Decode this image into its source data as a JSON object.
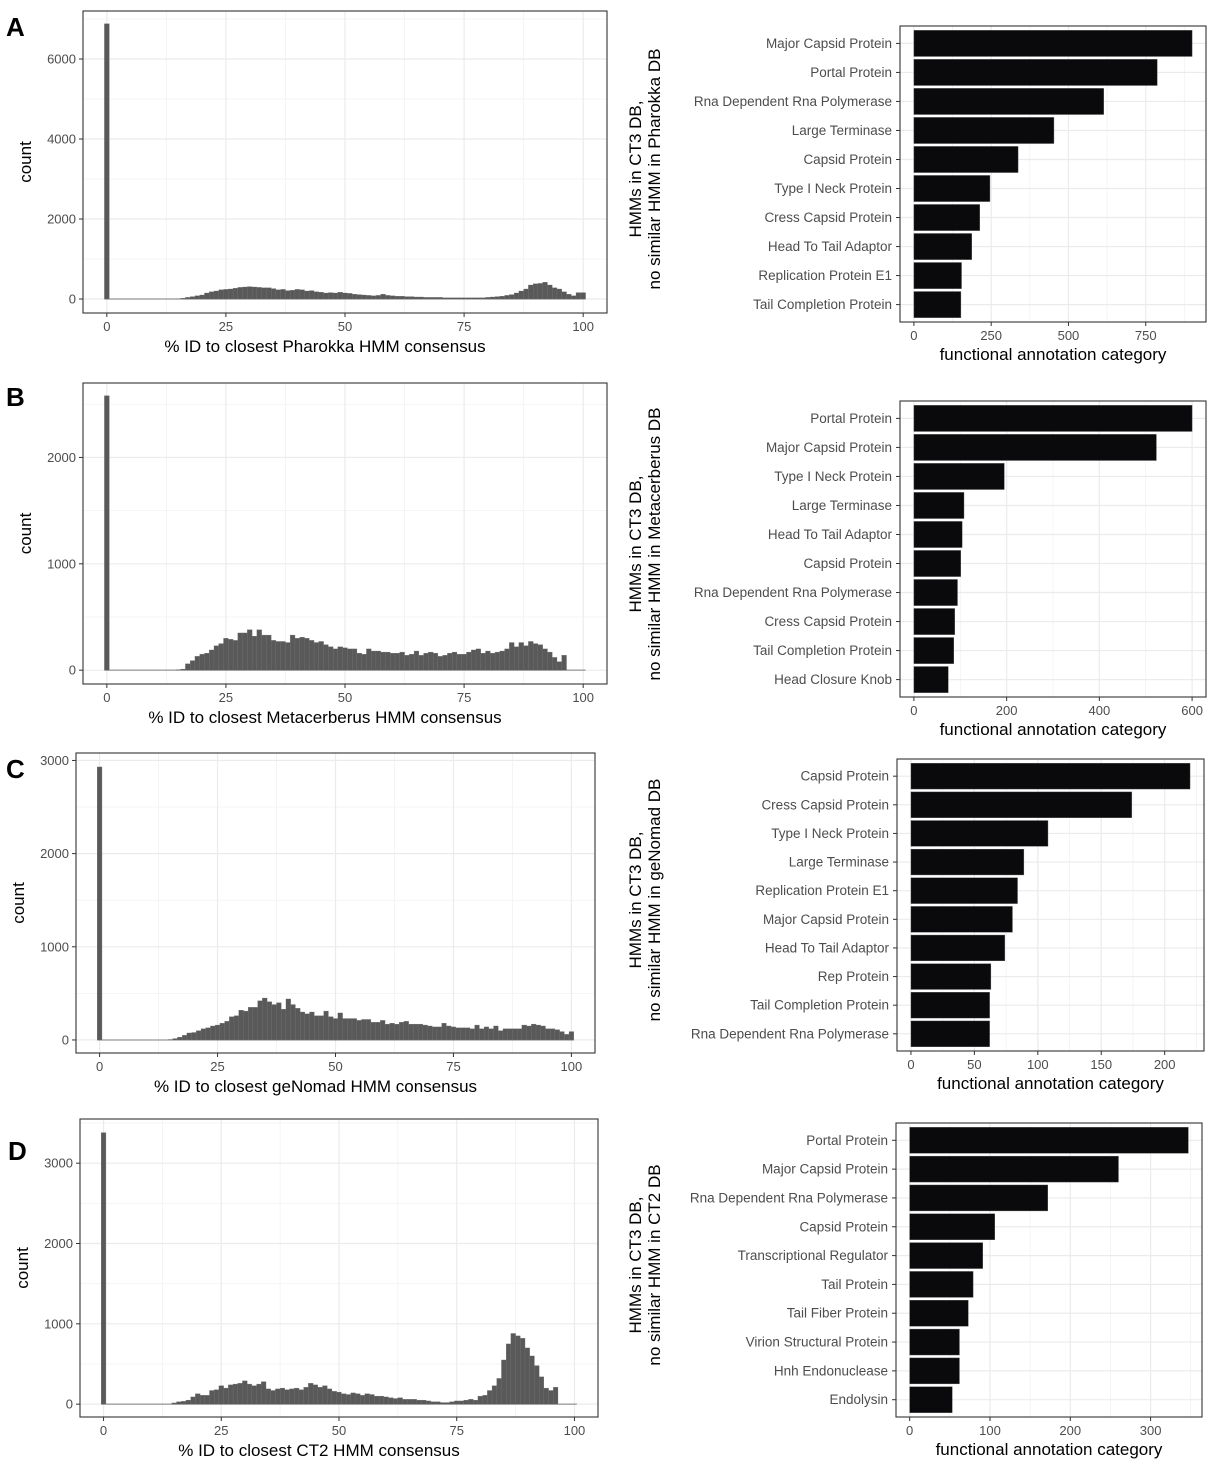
{
  "chart_data": [
    {
      "panel": "A",
      "type": "bar",
      "subtype": "histogram",
      "xlabel": "% ID to closest Pharokka HMM consensus",
      "ylabel": "count",
      "xlim": [
        -5,
        105
      ],
      "ylim": [
        -350,
        7200
      ],
      "xticks": [
        0,
        25,
        50,
        75,
        100
      ],
      "yticks": [
        0,
        2000,
        4000,
        6000
      ],
      "grid": true,
      "bin_width": 1,
      "zero_bin": 6880,
      "bins_start": 15,
      "values": [
        5,
        20,
        40,
        60,
        80,
        100,
        150,
        180,
        200,
        230,
        240,
        250,
        270,
        290,
        300,
        310,
        300,
        290,
        280,
        280,
        260,
        230,
        240,
        210,
        220,
        240,
        230,
        200,
        210,
        180,
        170,
        150,
        160,
        150,
        170,
        150,
        140,
        120,
        110,
        100,
        90,
        80,
        90,
        120,
        90,
        80,
        70,
        70,
        60,
        60,
        50,
        50,
        40,
        40,
        40,
        40,
        30,
        30,
        30,
        30,
        30,
        30,
        30,
        30,
        30,
        40,
        50,
        60,
        70,
        90,
        110,
        150,
        200,
        250,
        350,
        380,
        390,
        420,
        350,
        280,
        250,
        180,
        120,
        80,
        160,
        160
      ],
      "fill": "#595959"
    },
    {
      "panel": "A",
      "type": "bar",
      "orientation": "horizontal",
      "ylabel_lines": [
        "HMMs in CT3 DB,",
        "no similar HMM in Pharokka DB"
      ],
      "xlabel": "functional annotation category",
      "xlim": [
        -45,
        945
      ],
      "xticks": [
        0,
        250,
        500,
        750
      ],
      "grid": true,
      "categories": [
        "Major Capsid Protein",
        "Portal Protein",
        "Rna Dependent Rna Polymerase",
        "Large Terminase",
        "Capsid Protein",
        "Type I Neck Protein",
        "Cress Capsid Protein",
        "Head To Tail Adaptor",
        "Replication Protein E1",
        "Tail Completion Protein"
      ],
      "values": [
        900,
        787,
        614,
        453,
        337,
        246,
        213,
        187,
        154,
        152
      ],
      "fill": "#0a0a0c"
    },
    {
      "panel": "B",
      "type": "bar",
      "subtype": "histogram",
      "xlabel": "% ID to closest Metacerberus HMM consensus",
      "ylabel": "count",
      "xlim": [
        -5,
        105
      ],
      "ylim": [
        -130,
        2700
      ],
      "xticks": [
        0,
        25,
        50,
        75,
        100
      ],
      "yticks": [
        0,
        1000,
        2000
      ],
      "grid": true,
      "bin_width": 1,
      "zero_bin": 2580,
      "bins_start": 15,
      "values": [
        5,
        10,
        60,
        90,
        130,
        150,
        160,
        190,
        230,
        250,
        300,
        290,
        280,
        350,
        350,
        380,
        320,
        380,
        330,
        330,
        280,
        270,
        270,
        260,
        330,
        300,
        310,
        300,
        280,
        260,
        270,
        240,
        220,
        200,
        220,
        210,
        200,
        200,
        160,
        150,
        200,
        180,
        180,
        170,
        170,
        160,
        160,
        170,
        140,
        150,
        180,
        140,
        160,
        170,
        160,
        130,
        140,
        160,
        170,
        150,
        150,
        170,
        190,
        200,
        160,
        180,
        160,
        170,
        180,
        200,
        260,
        220,
        260,
        230,
        270,
        250,
        240,
        200,
        170,
        120,
        80,
        140
      ],
      "fill": "#595959"
    },
    {
      "panel": "B",
      "type": "bar",
      "orientation": "horizontal",
      "ylabel_lines": [
        "HMMs in CT3 DB,",
        "no similar HMM in Metacerberus DB"
      ],
      "xlabel": "functional annotation category",
      "xlim": [
        -30,
        630
      ],
      "xticks": [
        0,
        200,
        400,
        600
      ],
      "grid": true,
      "categories": [
        "Portal Protein",
        "Major Capsid Protein",
        "Type I Neck Protein",
        "Large Terminase",
        "Head To Tail Adaptor",
        "Capsid Protein",
        "Rna Dependent Rna Polymerase",
        "Cress Capsid Protein",
        "Tail Completion Protein",
        "Head Closure Knob"
      ],
      "values": [
        600,
        523,
        195,
        108,
        104,
        101,
        94,
        88,
        86,
        74
      ],
      "fill": "#0a0a0c"
    },
    {
      "panel": "C",
      "type": "bar",
      "subtype": "histogram",
      "xlabel": "% ID to closest geNomad HMM consensus",
      "ylabel": "count",
      "xlim": [
        -5,
        105
      ],
      "ylim": [
        -140,
        3080
      ],
      "xticks": [
        0,
        25,
        50,
        75,
        100
      ],
      "yticks": [
        0,
        1000,
        2000,
        3000
      ],
      "grid": true,
      "bin_width": 1,
      "zero_bin": 2930,
      "bins_start": 15,
      "values": [
        5,
        15,
        30,
        50,
        75,
        80,
        100,
        120,
        130,
        150,
        160,
        180,
        200,
        250,
        260,
        320,
        310,
        350,
        350,
        420,
        450,
        410,
        380,
        400,
        330,
        440,
        380,
        340,
        300,
        280,
        300,
        260,
        260,
        310,
        250,
        230,
        290,
        230,
        230,
        230,
        210,
        220,
        220,
        190,
        190,
        210,
        170,
        180,
        170,
        190,
        200,
        170,
        170,
        170,
        160,
        150,
        140,
        140,
        180,
        150,
        140,
        130,
        130,
        130,
        120,
        160,
        120,
        140,
        120,
        150,
        100,
        120,
        120,
        120,
        120,
        160,
        150,
        170,
        160,
        150,
        120,
        120,
        110,
        90,
        60,
        90
      ],
      "fill": "#595959"
    },
    {
      "panel": "C",
      "type": "bar",
      "orientation": "horizontal",
      "ylabel_lines": [
        "HMMs in CT3 DB,",
        "no similar HMM in geNomad DB"
      ],
      "xlabel": "functional annotation category",
      "xlim": [
        -11,
        231
      ],
      "xticks": [
        0,
        50,
        100,
        150,
        200
      ],
      "grid": true,
      "categories": [
        "Capsid Protein",
        "Cress Capsid Protein",
        "Type I Neck Protein",
        "Large Terminase",
        "Replication Protein E1",
        "Major Capsid Protein",
        "Head To Tail Adaptor",
        "Rep Protein",
        "Tail Completion Protein",
        "Rna Dependent Rna Polymerase"
      ],
      "values": [
        220,
        174,
        108,
        89,
        84,
        80,
        74,
        63,
        62,
        62
      ],
      "fill": "#0a0a0c"
    },
    {
      "panel": "D",
      "type": "bar",
      "subtype": "histogram",
      "xlabel": "% ID to closest CT2 HMM consensus",
      "ylabel": "count",
      "xlim": [
        -5,
        105
      ],
      "ylim": [
        -160,
        3550
      ],
      "xticks": [
        0,
        25,
        50,
        75,
        100
      ],
      "yticks": [
        0,
        1000,
        2000,
        3000
      ],
      "grid": true,
      "bin_width": 1,
      "zero_bin": 3380,
      "bins_start": 15,
      "values": [
        15,
        30,
        35,
        50,
        90,
        130,
        110,
        110,
        170,
        180,
        230,
        200,
        240,
        250,
        260,
        290,
        250,
        230,
        250,
        280,
        190,
        170,
        190,
        200,
        180,
        190,
        200,
        180,
        210,
        260,
        240,
        210,
        230,
        190,
        160,
        150,
        130,
        120,
        140,
        130,
        110,
        130,
        120,
        100,
        100,
        90,
        80,
        70,
        80,
        60,
        60,
        60,
        50,
        50,
        40,
        30,
        30,
        20,
        20,
        30,
        40,
        40,
        50,
        60,
        50,
        100,
        110,
        170,
        230,
        320,
        550,
        750,
        880,
        850,
        820,
        700,
        600,
        480,
        340,
        200,
        170,
        210
      ],
      "fill": "#595959"
    },
    {
      "panel": "D",
      "type": "bar",
      "orientation": "horizontal",
      "ylabel_lines": [
        "HMMs in CT3 DB,",
        "no similar HMM in CT2 DB"
      ],
      "xlabel": "functional annotation category",
      "xlim": [
        -17,
        364
      ],
      "xticks": [
        0,
        100,
        200,
        300
      ],
      "grid": true,
      "categories": [
        "Portal Protein",
        "Major Capsid Protein",
        "Rna Dependent Rna Polymerase",
        "Capsid Protein",
        "Transcriptional Regulator",
        "Tail Protein",
        "Tail Fiber Protein",
        "Virion Structural Protein",
        "Hnh Endonuclease",
        "Endolysin"
      ],
      "values": [
        347,
        260,
        172,
        106,
        91,
        79,
        73,
        62,
        62,
        53
      ],
      "fill": "#0a0a0c"
    }
  ]
}
